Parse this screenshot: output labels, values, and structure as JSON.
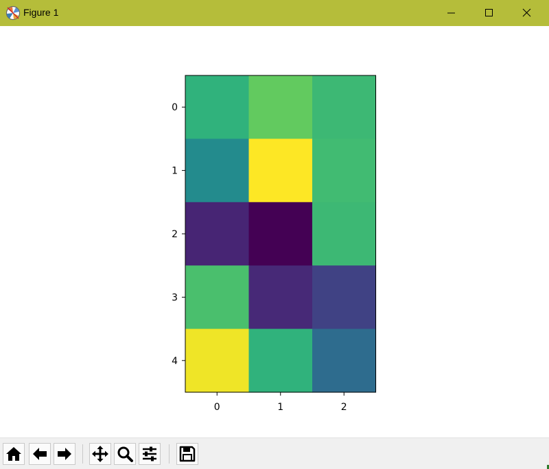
{
  "window": {
    "title": "Figure 1",
    "app_icon": "matplotlib-icon",
    "controls": [
      "minimize-icon",
      "maximize-icon",
      "close-icon"
    ]
  },
  "toolbar": {
    "buttons": [
      "home-icon",
      "back-arrow-icon",
      "forward-arrow-icon",
      "pan-icon",
      "zoom-icon",
      "configure-subplots-icon",
      "save-icon"
    ]
  },
  "chart_data": {
    "type": "heatmap",
    "colormap": "viridis",
    "x_ticks": [
      "0",
      "1",
      "2"
    ],
    "y_ticks": [
      "0",
      "1",
      "2",
      "3",
      "4"
    ],
    "values": [
      [
        0.65,
        0.76,
        0.68
      ],
      [
        0.48,
        1.0,
        0.69
      ],
      [
        0.11,
        0.0,
        0.68
      ],
      [
        0.71,
        0.12,
        0.2
      ],
      [
        0.98,
        0.65,
        0.36
      ]
    ]
  }
}
